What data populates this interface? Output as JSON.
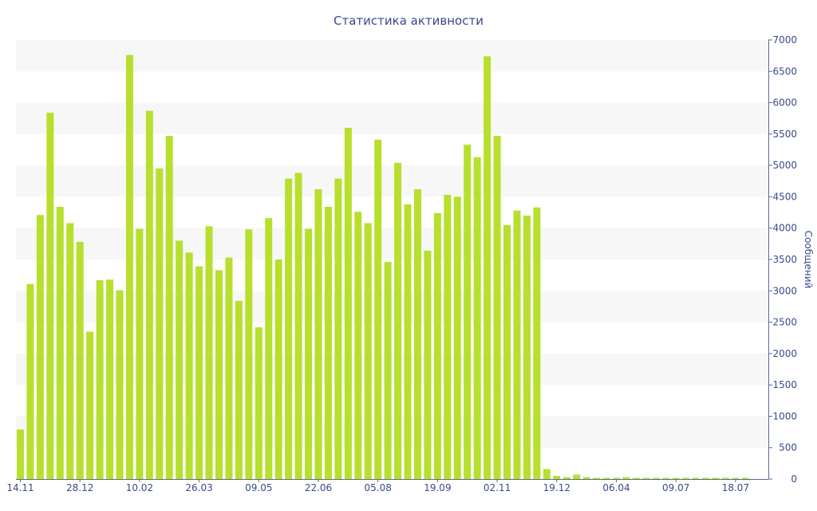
{
  "chart_data": {
    "type": "bar",
    "title": "Статистика активности",
    "ylabel": "Сообщений",
    "xlabel": "",
    "ylim": [
      0,
      7000
    ],
    "y_ticks": [
      0,
      500,
      1000,
      1500,
      2000,
      2500,
      3000,
      3500,
      4000,
      4500,
      5000,
      5500,
      6000,
      6500,
      7000
    ],
    "y_axis_side": "right",
    "x_tick_labels": [
      {
        "label": "14.11",
        "index": 0
      },
      {
        "label": "28.12",
        "index": 6
      },
      {
        "label": "10.02",
        "index": 12
      },
      {
        "label": "26.03",
        "index": 18
      },
      {
        "label": "09.05",
        "index": 24
      },
      {
        "label": "22.06",
        "index": 30
      },
      {
        "label": "05.08",
        "index": 36
      },
      {
        "label": "19.09",
        "index": 42
      },
      {
        "label": "02.11",
        "index": 48
      },
      {
        "label": "19.12",
        "index": 54
      },
      {
        "label": "06.04",
        "index": 60
      },
      {
        "label": "09.07",
        "index": 66
      },
      {
        "label": "18.07",
        "index": 72
      }
    ],
    "values": [
      790,
      3110,
      4210,
      5840,
      4340,
      4080,
      3780,
      2350,
      3170,
      3180,
      3010,
      6760,
      3990,
      5870,
      4950,
      5470,
      3800,
      3610,
      3390,
      4030,
      3330,
      3530,
      2840,
      3980,
      2420,
      4160,
      3500,
      4790,
      4880,
      3990,
      4620,
      4340,
      4790,
      5600,
      4260,
      4080,
      5410,
      3460,
      5040,
      4380,
      4620,
      3640,
      4240,
      4530,
      4500,
      5330,
      5130,
      6740,
      5470,
      4050,
      4280,
      4200,
      4330,
      160,
      50,
      30,
      70,
      30,
      20,
      20,
      20,
      30,
      20,
      20,
      20,
      20,
      20,
      20,
      20,
      20,
      20,
      20,
      20,
      20
    ],
    "colors": {
      "bar": "#b7df2e",
      "band": "#f7f7f7",
      "text": "#3a4a8a",
      "axis": "#5a6a9a"
    },
    "grid": "alternating horizontal bands"
  }
}
